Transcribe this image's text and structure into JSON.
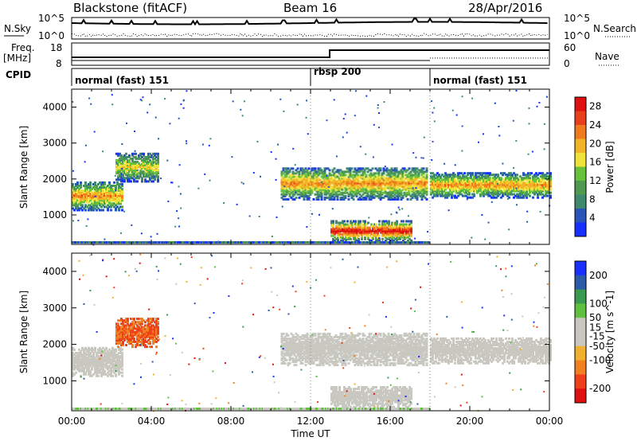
{
  "header": {
    "station": "Blackstone (fitACF)",
    "beam": "Beam 16",
    "date": "28/Apr/2016"
  },
  "noise_panel": {
    "left_label": "N.Sky",
    "right_label": "N.Search",
    "left_ticks": [
      "10^5",
      "10^0"
    ],
    "right_ticks": [
      "10^5",
      "10^0"
    ]
  },
  "freq_panel": {
    "left_label_top": "Freq.",
    "left_label_unit": "[MHz]",
    "left_ticks": [
      "18",
      "8"
    ],
    "right_label": "Nave",
    "right_ticks": [
      "60",
      "0"
    ]
  },
  "cpid_panel": {
    "label": "CPID",
    "modes": [
      {
        "name": "normal (fast) 151",
        "start_hour": 0
      },
      {
        "name": "rbsp 200",
        "start_hour": 12
      },
      {
        "name": "normal (fast) 151",
        "start_hour": 18
      }
    ]
  },
  "colors": {
    "power_scale": [
      "#1530ff",
      "#2a55b8",
      "#3f8a6e",
      "#4f9a4f",
      "#66c23a",
      "#f0e23a",
      "#f2b324",
      "#f07a1e",
      "#e8401a",
      "#e01010"
    ],
    "velocity_scale": [
      "#e01010",
      "#f0401a",
      "#f08020",
      "#f2b030",
      "#c8c8c0",
      "#c8c8c0",
      "#60c040",
      "#3a9a50",
      "#2a5aa8",
      "#1a30ff"
    ]
  },
  "chart_data": [
    {
      "type": "heatmap",
      "title": "Power",
      "xlabel": "",
      "ylabel": "Slant Range [km]",
      "x_range_hours": [
        0,
        24
      ],
      "ylim": [
        180,
        4500
      ],
      "x_ticks": [
        "00:00",
        "04:00",
        "08:00",
        "12:00",
        "16:00",
        "20:00",
        "00:00"
      ],
      "y_ticks": [
        1000,
        2000,
        3000,
        4000
      ],
      "colorbar": {
        "label": "Power [dB]",
        "ticks": [
          28,
          24,
          20,
          16,
          12,
          8,
          4
        ],
        "range": [
          0,
          30
        ]
      },
      "echo_bands": [
        {
          "t": [
            0.0,
            2.5
          ],
          "range_start_km": 1100,
          "range_end_km": 1900,
          "peak_db": 22
        },
        {
          "t": [
            2.2,
            4.3
          ],
          "range_start_km": 1900,
          "range_end_km": 2700,
          "peak_db": 18
        },
        {
          "t": [
            10.5,
            17.8
          ],
          "range_start_km": 1400,
          "range_end_km": 2300,
          "peak_db": 22
        },
        {
          "t": [
            13.0,
            17.0
          ],
          "range_start_km": 250,
          "range_end_km": 800,
          "peak_db": 30
        },
        {
          "t": [
            18.0,
            24.0
          ],
          "range_start_km": 1450,
          "range_end_km": 2150,
          "peak_db": 22
        }
      ]
    },
    {
      "type": "heatmap",
      "title": "Velocity",
      "xlabel": "Time UT",
      "ylabel": "Slant Range [km]",
      "x_range_hours": [
        0,
        24
      ],
      "ylim": [
        180,
        4500
      ],
      "x_ticks": [
        "00:00",
        "04:00",
        "08:00",
        "12:00",
        "16:00",
        "20:00",
        "00:00"
      ],
      "y_ticks": [
        1000,
        2000,
        3000,
        4000
      ],
      "colorbar": {
        "label": "Velocity [m s^-1]",
        "ticks": [
          200,
          100,
          50,
          15,
          -15,
          -50,
          -100,
          -200
        ],
        "range": [
          -250,
          250
        ]
      },
      "echo_bands": [
        {
          "t": [
            0.0,
            2.5
          ],
          "range_start_km": 1100,
          "range_end_km": 1900,
          "velocity": -10
        },
        {
          "t": [
            2.2,
            4.3
          ],
          "range_start_km": 1900,
          "range_end_km": 2700,
          "velocity": -150
        },
        {
          "t": [
            10.5,
            17.8
          ],
          "range_start_km": 1400,
          "range_end_km": 2300,
          "velocity": 0
        },
        {
          "t": [
            13.0,
            17.0
          ],
          "range_start_km": 250,
          "range_end_km": 800,
          "velocity": 0
        },
        {
          "t": [
            18.0,
            24.0
          ],
          "range_start_km": 1450,
          "range_end_km": 2150,
          "velocity": 0
        }
      ]
    }
  ]
}
